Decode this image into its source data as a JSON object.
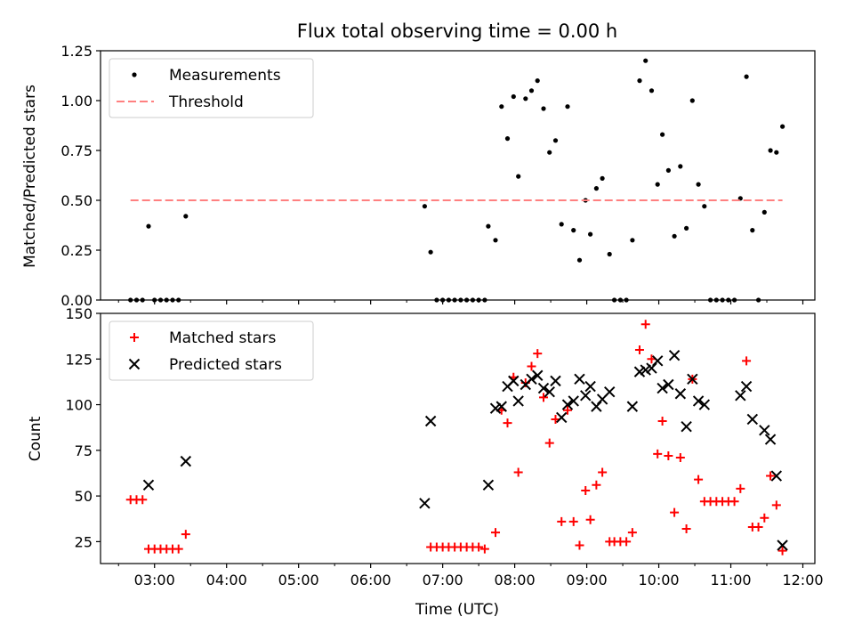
{
  "chart_data": [
    {
      "type": "scatter",
      "title": "Flux total observing time = 0.00 h",
      "xlabel": "",
      "ylabel": "Matched/Predicted stars",
      "xlim": [
        "02:15",
        "12:10"
      ],
      "ylim": [
        0,
        1.25
      ],
      "yticks": [
        "0.00",
        "0.25",
        "0.50",
        "0.75",
        "1.00",
        "1.25"
      ],
      "grid": false,
      "legend": "top-left",
      "series": [
        {
          "name": "Measurements",
          "color": "#000000",
          "marker": "dot",
          "points": [
            [
              "02:40",
              0
            ],
            [
              "02:45",
              0
            ],
            [
              "02:50",
              0
            ],
            [
              "02:55",
              0.37
            ],
            [
              "03:00",
              0
            ],
            [
              "03:05",
              0
            ],
            [
              "03:10",
              0
            ],
            [
              "03:15",
              0
            ],
            [
              "03:20",
              0
            ],
            [
              "03:26",
              0.42
            ],
            [
              "06:45",
              0.47
            ],
            [
              "06:50",
              0.24
            ],
            [
              "06:55",
              0
            ],
            [
              "07:00",
              0
            ],
            [
              "07:05",
              0
            ],
            [
              "07:10",
              0
            ],
            [
              "07:15",
              0
            ],
            [
              "07:20",
              0
            ],
            [
              "07:25",
              0
            ],
            [
              "07:30",
              0
            ],
            [
              "07:35",
              0
            ],
            [
              "07:38",
              0.37
            ],
            [
              "07:44",
              0.3
            ],
            [
              "07:49",
              0.97
            ],
            [
              "07:54",
              0.81
            ],
            [
              "07:59",
              1.02
            ],
            [
              "08:03",
              0.62
            ],
            [
              "08:09",
              1.01
            ],
            [
              "08:14",
              1.05
            ],
            [
              "08:19",
              1.1
            ],
            [
              "08:24",
              0.96
            ],
            [
              "08:29",
              0.74
            ],
            [
              "08:34",
              0.8
            ],
            [
              "08:39",
              0.38
            ],
            [
              "08:44",
              0.97
            ],
            [
              "08:49",
              0.35
            ],
            [
              "08:54",
              0.2
            ],
            [
              "08:59",
              0.5
            ],
            [
              "09:03",
              0.33
            ],
            [
              "09:08",
              0.56
            ],
            [
              "09:13",
              0.61
            ],
            [
              "09:19",
              0.23
            ],
            [
              "09:23",
              0
            ],
            [
              "09:28",
              0
            ],
            [
              "09:33",
              0
            ],
            [
              "09:38",
              0.3
            ],
            [
              "09:44",
              1.1
            ],
            [
              "09:49",
              1.2
            ],
            [
              "09:54",
              1.05
            ],
            [
              "09:59",
              0.58
            ],
            [
              "10:03",
              0.83
            ],
            [
              "10:08",
              0.65
            ],
            [
              "10:13",
              0.32
            ],
            [
              "10:18",
              0.67
            ],
            [
              "10:23",
              0.36
            ],
            [
              "10:28",
              1.0
            ],
            [
              "10:33",
              0.58
            ],
            [
              "10:38",
              0.47
            ],
            [
              "10:43",
              0
            ],
            [
              "10:48",
              0
            ],
            [
              "10:53",
              0
            ],
            [
              "10:58",
              0
            ],
            [
              "11:03",
              0
            ],
            [
              "11:08",
              0.51
            ],
            [
              "11:13",
              1.12
            ],
            [
              "11:18",
              0.35
            ],
            [
              "11:23",
              0
            ],
            [
              "11:28",
              0.44
            ],
            [
              "11:33",
              0.75
            ],
            [
              "11:38",
              0.74
            ],
            [
              "11:43",
              0.87
            ]
          ]
        },
        {
          "name": "Threshold",
          "color": "#ff8080",
          "marker": "dashed-line",
          "points": [
            [
              "02:40",
              0.5
            ],
            [
              "11:43",
              0.5
            ]
          ]
        }
      ]
    },
    {
      "type": "scatter",
      "title": "",
      "xlabel": "Time (UTC)",
      "ylabel": "Count",
      "xlim": [
        "02:15",
        "12:10"
      ],
      "ylim": [
        13,
        150
      ],
      "xticks": [
        "03:00",
        "04:00",
        "05:00",
        "06:00",
        "07:00",
        "08:00",
        "09:00",
        "10:00",
        "11:00",
        "12:00"
      ],
      "yticks": [
        "25",
        "50",
        "75",
        "100",
        "125",
        "150"
      ],
      "grid": false,
      "legend": "top-left",
      "series": [
        {
          "name": "Matched stars",
          "color": "#ff0000",
          "marker": "plus",
          "points": [
            [
              "02:40",
              48
            ],
            [
              "02:45",
              48
            ],
            [
              "02:50",
              48
            ],
            [
              "02:55",
              21
            ],
            [
              "03:00",
              21
            ],
            [
              "03:05",
              21
            ],
            [
              "03:10",
              21
            ],
            [
              "03:15",
              21
            ],
            [
              "03:20",
              21
            ],
            [
              "03:26",
              29
            ],
            [
              "06:50",
              22
            ],
            [
              "06:55",
              22
            ],
            [
              "07:00",
              22
            ],
            [
              "07:05",
              22
            ],
            [
              "07:10",
              22
            ],
            [
              "07:15",
              22
            ],
            [
              "07:20",
              22
            ],
            [
              "07:25",
              22
            ],
            [
              "07:30",
              22
            ],
            [
              "07:35",
              21
            ],
            [
              "07:44",
              30
            ],
            [
              "07:49",
              97
            ],
            [
              "07:54",
              90
            ],
            [
              "07:59",
              115
            ],
            [
              "08:03",
              63
            ],
            [
              "08:09",
              112
            ],
            [
              "08:14",
              121
            ],
            [
              "08:19",
              128
            ],
            [
              "08:24",
              104
            ],
            [
              "08:29",
              79
            ],
            [
              "08:34",
              92
            ],
            [
              "08:39",
              36
            ],
            [
              "08:44",
              97
            ],
            [
              "08:49",
              36
            ],
            [
              "08:54",
              23
            ],
            [
              "08:59",
              53
            ],
            [
              "09:03",
              37
            ],
            [
              "09:08",
              56
            ],
            [
              "09:13",
              63
            ],
            [
              "09:19",
              25
            ],
            [
              "09:23",
              25
            ],
            [
              "09:28",
              25
            ],
            [
              "09:33",
              25
            ],
            [
              "09:38",
              30
            ],
            [
              "09:44",
              130
            ],
            [
              "09:49",
              144
            ],
            [
              "09:54",
              125
            ],
            [
              "09:59",
              73
            ],
            [
              "10:03",
              91
            ],
            [
              "10:08",
              72
            ],
            [
              "10:13",
              41
            ],
            [
              "10:18",
              71
            ],
            [
              "10:23",
              32
            ],
            [
              "10:28",
              114
            ],
            [
              "10:33",
              59
            ],
            [
              "10:38",
              47
            ],
            [
              "10:43",
              47
            ],
            [
              "10:48",
              47
            ],
            [
              "10:53",
              47
            ],
            [
              "10:58",
              47
            ],
            [
              "11:03",
              47
            ],
            [
              "11:08",
              54
            ],
            [
              "11:13",
              124
            ],
            [
              "11:18",
              33
            ],
            [
              "11:23",
              33
            ],
            [
              "11:28",
              38
            ],
            [
              "11:33",
              61
            ],
            [
              "11:38",
              45
            ],
            [
              "11:43",
              20
            ]
          ]
        },
        {
          "name": "Predicted stars",
          "color": "#000000",
          "marker": "x",
          "points": [
            [
              "02:55",
              56
            ],
            [
              "03:26",
              69
            ],
            [
              "06:45",
              46
            ],
            [
              "06:50",
              91
            ],
            [
              "07:38",
              56
            ],
            [
              "07:44",
              98
            ],
            [
              "07:49",
              99
            ],
            [
              "07:54",
              110
            ],
            [
              "07:59",
              113
            ],
            [
              "08:03",
              102
            ],
            [
              "08:09",
              111
            ],
            [
              "08:14",
              114
            ],
            [
              "08:19",
              116
            ],
            [
              "08:24",
              109
            ],
            [
              "08:29",
              107
            ],
            [
              "08:34",
              113
            ],
            [
              "08:39",
              93
            ],
            [
              "08:44",
              100
            ],
            [
              "08:49",
              102
            ],
            [
              "08:54",
              114
            ],
            [
              "08:59",
              105
            ],
            [
              "09:03",
              110
            ],
            [
              "09:08",
              99
            ],
            [
              "09:13",
              103
            ],
            [
              "09:19",
              107
            ],
            [
              "09:38",
              99
            ],
            [
              "09:44",
              118
            ],
            [
              "09:49",
              119
            ],
            [
              "09:54",
              120
            ],
            [
              "09:59",
              124
            ],
            [
              "10:03",
              109
            ],
            [
              "10:08",
              111
            ],
            [
              "10:13",
              127
            ],
            [
              "10:18",
              106
            ],
            [
              "10:23",
              88
            ],
            [
              "10:28",
              114
            ],
            [
              "10:33",
              102
            ],
            [
              "10:38",
              100
            ],
            [
              "11:08",
              105
            ],
            [
              "11:13",
              110
            ],
            [
              "11:18",
              92
            ],
            [
              "11:28",
              86
            ],
            [
              "11:33",
              81
            ],
            [
              "11:38",
              61
            ],
            [
              "11:43",
              23
            ]
          ]
        }
      ]
    }
  ]
}
